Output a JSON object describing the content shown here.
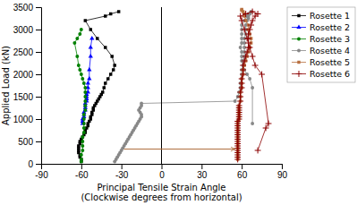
{
  "chart_data": {
    "type": "line",
    "xlabel": "Principal Tensile Strain Angle\n(Clockwise degrees from horizontal)",
    "ylabel": "Applied Load (kN)",
    "xlim": [
      -90,
      90
    ],
    "ylim": [
      0,
      3500
    ],
    "xticks": [
      -90,
      -60,
      -30,
      0,
      30,
      60,
      90
    ],
    "yticks": [
      0,
      500,
      1000,
      1500,
      2000,
      2500,
      3000,
      3500
    ],
    "grid": false,
    "legend": "upper right",
    "annotations": [
      {
        "type": "vline",
        "x": 0,
        "color": "black"
      },
      {
        "type": "arrow",
        "x": [
          -28,
          55
        ],
        "y": [
          330,
          330
        ],
        "color": "#b07040"
      }
    ],
    "series": [
      {
        "name": "Rosette 1",
        "color": "black",
        "marker": "square",
        "x": [
          -60,
          -60,
          -61,
          -61,
          -62,
          -62,
          -62,
          -62,
          -61,
          -61,
          -60,
          -59,
          -58,
          -57,
          -57,
          -56,
          -55,
          -55,
          -54,
          -53,
          -53,
          -52,
          -52,
          -51,
          -51,
          -50,
          -49,
          -48,
          -47,
          -46,
          -45,
          -44,
          -43,
          -42,
          -40,
          -38,
          -36,
          -35,
          -37,
          -42,
          -48,
          -53,
          -57,
          -42,
          -38,
          -32
        ],
        "values": [
          50,
          100,
          150,
          200,
          250,
          300,
          350,
          400,
          450,
          500,
          550,
          600,
          650,
          700,
          750,
          800,
          850,
          900,
          950,
          1000,
          1050,
          1100,
          1150,
          1200,
          1250,
          1300,
          1350,
          1400,
          1450,
          1500,
          1550,
          1600,
          1700,
          1800,
          1900,
          2000,
          2100,
          2200,
          2400,
          2600,
          2800,
          3000,
          3200,
          3300,
          3350,
          3400
        ]
      },
      {
        "name": "Rosette 2",
        "color": "blue",
        "marker": "triangle",
        "x": [
          -59,
          -59,
          -59,
          -58,
          -58,
          -58,
          -57,
          -57,
          -57,
          -57,
          -56,
          -56,
          -56,
          -56,
          -55,
          -55,
          -55,
          -54,
          -54,
          -53,
          -53,
          -52
        ],
        "values": [
          900,
          950,
          1000,
          1050,
          1100,
          1150,
          1200,
          1250,
          1300,
          1350,
          1400,
          1450,
          1500,
          1550,
          1600,
          1700,
          1800,
          1900,
          2100,
          2400,
          2600,
          2800
        ]
      },
      {
        "name": "Rosette 3",
        "color": "green",
        "marker": "circle",
        "x": [
          -60,
          -60,
          -60,
          -59,
          -59,
          -59,
          -59,
          -58,
          -58,
          -58,
          -58,
          -58,
          -57,
          -57,
          -57,
          -57,
          -57,
          -57,
          -58,
          -59,
          -60,
          -61,
          -62,
          -63,
          -65,
          -63,
          -61,
          -60
        ],
        "values": [
          50,
          100,
          200,
          300,
          400,
          500,
          600,
          700,
          800,
          900,
          1000,
          1100,
          1200,
          1300,
          1400,
          1500,
          1600,
          1700,
          1800,
          1900,
          2000,
          2100,
          2200,
          2400,
          2700,
          2800,
          2900,
          3000
        ]
      },
      {
        "name": "Rosette 4",
        "color": "#888888",
        "marker": "circle",
        "x": [
          -35,
          -34,
          -33,
          -32,
          -31,
          -30,
          -29,
          -28,
          -27,
          -26,
          -25,
          -24,
          -23,
          -22,
          -21,
          -20,
          -19,
          -18,
          -17,
          -16,
          -15,
          -15,
          -16,
          -17,
          -16,
          -15,
          -15,
          55,
          57,
          58,
          59,
          59,
          60,
          60,
          60,
          61,
          61,
          62,
          62,
          62,
          62,
          62,
          63,
          63,
          63,
          64,
          65,
          65,
          66,
          67,
          65,
          64,
          62,
          60,
          60,
          60,
          60,
          60,
          59,
          60,
          60,
          60,
          61,
          62,
          64,
          66,
          68,
          68
        ],
        "values": [
          50,
          100,
          150,
          200,
          250,
          300,
          350,
          400,
          450,
          500,
          550,
          600,
          650,
          700,
          750,
          800,
          850,
          900,
          950,
          1000,
          1050,
          1100,
          1150,
          1200,
          1250,
          1300,
          1350,
          1400,
          1500,
          1600,
          1700,
          1800,
          1900,
          2000,
          2100,
          2200,
          2300,
          2400,
          2500,
          2600,
          2700,
          2800,
          2900,
          3000,
          3100,
          3200,
          3250,
          3300,
          3350,
          3400,
          3350,
          3300,
          3200,
          3100,
          3000,
          2900,
          2800,
          2700,
          2600,
          2500,
          2400,
          2300,
          2200,
          2100,
          2000,
          1900,
          1700,
          900
        ]
      },
      {
        "name": "Rosette 5",
        "color": "#b87040",
        "marker": "square",
        "x": [
          57,
          57,
          57,
          57,
          57,
          57,
          57,
          57,
          57,
          57,
          57,
          57,
          57,
          57,
          57,
          57,
          57,
          57,
          58,
          58,
          58,
          58,
          58,
          58,
          58,
          59,
          59,
          59,
          60,
          60,
          60,
          61,
          61,
          62,
          63,
          64,
          65,
          66,
          67,
          67,
          66,
          65,
          65,
          63,
          62,
          62,
          61,
          60,
          60
        ],
        "values": [
          100,
          150,
          200,
          250,
          300,
          350,
          400,
          450,
          500,
          550,
          600,
          650,
          700,
          750,
          800,
          850,
          900,
          950,
          1000,
          1050,
          1100,
          1150,
          1200,
          1250,
          1300,
          1400,
          1500,
          1600,
          1700,
          1800,
          1900,
          2000,
          2100,
          2200,
          2300,
          2400,
          2500,
          2600,
          2700,
          2800,
          2900,
          3000,
          3100,
          3200,
          3300,
          3350,
          3400,
          3430,
          3450
        ]
      },
      {
        "name": "Rosette 6",
        "color": "#8b0000",
        "marker": "plus",
        "x": [
          57,
          57,
          57,
          57,
          57,
          57,
          57,
          57,
          57,
          57,
          57,
          57,
          57,
          57,
          57,
          57,
          57,
          57,
          58,
          58,
          58,
          58,
          58,
          58,
          58,
          59,
          59,
          59,
          60,
          60,
          60,
          61,
          61,
          61,
          62,
          63,
          64,
          65,
          65,
          65,
          65,
          66,
          67,
          68,
          70,
          72,
          68,
          63,
          59,
          60,
          62,
          64,
          66,
          68,
          70,
          75,
          80,
          78,
          72
        ],
        "values": [
          100,
          150,
          200,
          250,
          300,
          350,
          400,
          450,
          500,
          550,
          600,
          650,
          700,
          750,
          800,
          850,
          900,
          950,
          1000,
          1050,
          1100,
          1150,
          1200,
          1250,
          1300,
          1400,
          1500,
          1600,
          1700,
          1800,
          1900,
          2000,
          2100,
          2200,
          2300,
          2400,
          2500,
          2600,
          2700,
          2800,
          2900,
          3000,
          3100,
          3200,
          3300,
          3350,
          3400,
          3350,
          3300,
          3200,
          3000,
          2800,
          2600,
          2400,
          2200,
          2000,
          900,
          800,
          300
        ]
      }
    ]
  }
}
